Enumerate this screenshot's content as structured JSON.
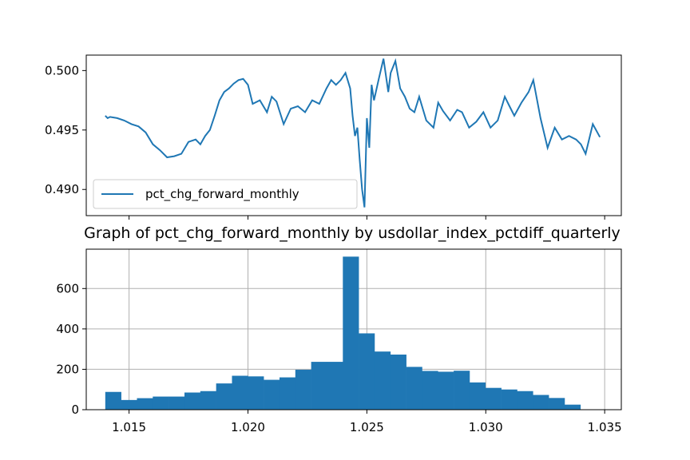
{
  "chart_data": [
    {
      "type": "line",
      "title": "",
      "xlabel": "",
      "ylabel": "",
      "xlim": [
        1.0132,
        1.0357
      ],
      "ylim": [
        0.4878,
        0.5013
      ],
      "xticks": [
        1.015,
        1.02,
        1.025,
        1.03,
        1.035
      ],
      "yticks": [
        0.49,
        0.495,
        0.5
      ],
      "ytick_labels": [
        "0.490",
        "0.495",
        "0.500"
      ],
      "xtick_labels_shown": false,
      "grid": false,
      "legend_position": "lower-left",
      "color": "#1f77b4",
      "series": [
        {
          "name": "pct_chg_forward_monthly",
          "x": [
            1.014,
            1.0141,
            1.0142,
            1.0145,
            1.0148,
            1.0151,
            1.0154,
            1.0157,
            1.016,
            1.0163,
            1.0166,
            1.0169,
            1.0172,
            1.0175,
            1.0178,
            1.018,
            1.0182,
            1.0184,
            1.0186,
            1.0188,
            1.019,
            1.0192,
            1.0194,
            1.0196,
            1.0198,
            1.02,
            1.0202,
            1.0205,
            1.0208,
            1.021,
            1.0212,
            1.0215,
            1.0218,
            1.0221,
            1.0224,
            1.0227,
            1.023,
            1.0233,
            1.0235,
            1.0237,
            1.0239,
            1.0241,
            1.0243,
            1.0244,
            1.0245,
            1.0246,
            1.0247,
            1.0248,
            1.0249,
            1.025,
            1.0251,
            1.0252,
            1.0253,
            1.0255,
            1.0257,
            1.0259,
            1.026,
            1.0262,
            1.0264,
            1.0266,
            1.0268,
            1.027,
            1.0272,
            1.0275,
            1.0278,
            1.028,
            1.0282,
            1.0285,
            1.0288,
            1.029,
            1.0293,
            1.0296,
            1.0299,
            1.0302,
            1.0305,
            1.0308,
            1.031,
            1.0312,
            1.0315,
            1.0318,
            1.032,
            1.0323,
            1.0326,
            1.0329,
            1.0332,
            1.0335,
            1.0338,
            1.034,
            1.0342,
            1.0345,
            1.0348
          ],
          "y": [
            0.4962,
            0.496,
            0.4961,
            0.496,
            0.4958,
            0.4955,
            0.4953,
            0.4948,
            0.4938,
            0.4933,
            0.4927,
            0.4928,
            0.493,
            0.494,
            0.4942,
            0.4938,
            0.4945,
            0.495,
            0.4962,
            0.4975,
            0.4982,
            0.4985,
            0.4989,
            0.4992,
            0.4993,
            0.4988,
            0.4972,
            0.4975,
            0.4965,
            0.4978,
            0.4974,
            0.4955,
            0.4968,
            0.497,
            0.4965,
            0.4975,
            0.4972,
            0.4985,
            0.4992,
            0.4988,
            0.4992,
            0.4998,
            0.4985,
            0.4962,
            0.4945,
            0.4952,
            0.4925,
            0.49,
            0.4885,
            0.496,
            0.4935,
            0.4988,
            0.4975,
            0.4993,
            0.501,
            0.4982,
            0.4998,
            0.5008,
            0.4985,
            0.4978,
            0.4968,
            0.4965,
            0.4978,
            0.4958,
            0.4952,
            0.4973,
            0.4966,
            0.4958,
            0.4967,
            0.4965,
            0.4952,
            0.4957,
            0.4965,
            0.4952,
            0.4958,
            0.4978,
            0.497,
            0.4962,
            0.4973,
            0.4982,
            0.4992,
            0.496,
            0.4935,
            0.4952,
            0.4942,
            0.4945,
            0.4942,
            0.4938,
            0.493,
            0.4955,
            0.4944
          ]
        }
      ]
    },
    {
      "type": "bar",
      "title": "Graph of pct_chg_forward_monthly by usdollar_index_pctdiff_quarterly",
      "xlabel": "",
      "ylabel": "",
      "xlim": [
        1.0132,
        1.0357
      ],
      "ylim": [
        0,
        795
      ],
      "xticks": [
        1.015,
        1.02,
        1.025,
        1.03,
        1.035
      ],
      "xtick_labels": [
        "1.015",
        "1.020",
        "1.025",
        "1.030",
        "1.035"
      ],
      "yticks": [
        0,
        200,
        400,
        600
      ],
      "ytick_labels": [
        "0",
        "200",
        "400",
        "600"
      ],
      "grid": true,
      "color": "#1f77b4",
      "bin_width": 0.000666,
      "bin_start": 1.014,
      "values": [
        88,
        48,
        57,
        65,
        65,
        85,
        92,
        130,
        168,
        165,
        148,
        160,
        198,
        237,
        237,
        758,
        378,
        288,
        273,
        212,
        192,
        188,
        193,
        135,
        108,
        100,
        92,
        73,
        58,
        25
      ]
    }
  ]
}
